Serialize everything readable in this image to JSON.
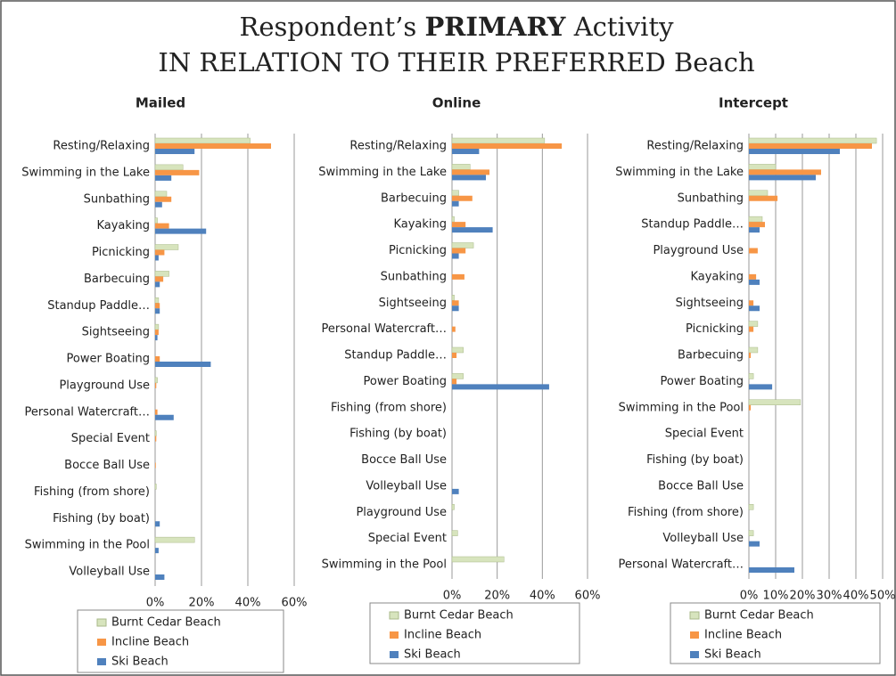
{
  "title": {
    "lines": [
      [
        "Respondent’s",
        "PRIMARY",
        "Activity"
      ],
      [
        "IN RELATION TO THEIR PREFERRED Beach"
      ]
    ]
  },
  "chart_data": [
    {
      "type": "hbar",
      "title": "Mailed",
      "categories": [
        "Resting/Relaxing",
        "Swimming in the Lake",
        "Sunbathing",
        "Kayaking",
        "Picnicking",
        "Barbecuing",
        "Standup Paddle…",
        "Sightseeing",
        "Power Boating",
        "Playground Use",
        "Personal Watercraft…",
        "Special Event",
        "Bocce Ball Use",
        "Fishing (from shore)",
        "Fishing (by boat)",
        "Swimming in the Pool",
        "Volleyball Use"
      ],
      "series": [
        {
          "name": "Burnt Cedar Beach",
          "color": "#d7e4bd",
          "values": [
            41,
            12,
            5,
            1,
            10,
            6,
            1.5,
            1.5,
            0,
            1,
            0,
            0.5,
            0,
            0.5,
            0,
            17,
            0
          ]
        },
        {
          "name": "Incline Beach",
          "color": "#f79646",
          "values": [
            50,
            19,
            7,
            6,
            4,
            3.5,
            2,
            1.5,
            2,
            0.5,
            1,
            0.5,
            0.3,
            0,
            0,
            0,
            0
          ]
        },
        {
          "name": "Ski Beach",
          "color": "#4f81bd",
          "values": [
            17,
            7,
            3,
            22,
            1.5,
            2,
            2,
            1,
            24,
            0,
            8,
            0,
            0,
            0,
            2,
            1.5,
            4
          ]
        }
      ],
      "xlim": [
        0,
        60
      ],
      "xticks": [
        {
          "value": 0,
          "label": "0%"
        },
        {
          "value": 20,
          "label": "20%"
        },
        {
          "value": 40,
          "label": "40%"
        },
        {
          "value": 60,
          "label": "60%"
        }
      ],
      "grid": true
    },
    {
      "type": "hbar",
      "title": "Online",
      "categories": [
        "Resting/Relaxing",
        "Swimming in the Lake",
        "Barbecuing",
        "Kayaking",
        "Picnicking",
        "Sunbathing",
        "Sightseeing",
        "Personal Watercraft…",
        "Standup Paddle…",
        "Power Boating",
        "Fishing (from shore)",
        "Fishing (by boat)",
        "Bocce Ball Use",
        "Volleyball Use",
        "Playground Use",
        "Special Event",
        "Swimming in the Pool"
      ],
      "series": [
        {
          "name": "Burnt Cedar Beach",
          "color": "#d7e4bd",
          "values": [
            41,
            8,
            3,
            1,
            9.5,
            0,
            1,
            0,
            5,
            5,
            0,
            0,
            0,
            0,
            1,
            2.5,
            23
          ]
        },
        {
          "name": "Incline Beach",
          "color": "#f79646",
          "values": [
            48.6,
            16.6,
            9,
            6,
            6,
            5.5,
            3,
            1.5,
            2,
            2,
            0,
            0,
            0,
            0,
            0,
            0,
            0
          ]
        },
        {
          "name": "Ski Beach",
          "color": "#4f81bd",
          "values": [
            12,
            15,
            3,
            18,
            3,
            0,
            3,
            0,
            0,
            43,
            0,
            0,
            0,
            3,
            0,
            0,
            0
          ]
        }
      ],
      "xlim": [
        0,
        60
      ],
      "xticks": [
        {
          "value": 0,
          "label": "0%"
        },
        {
          "value": 20,
          "label": "20%"
        },
        {
          "value": 40,
          "label": "40%"
        },
        {
          "value": 60,
          "label": "60%"
        }
      ],
      "grid": true
    },
    {
      "type": "hbar",
      "title": "Intercept",
      "categories": [
        "Resting/Relaxing",
        "Swimming in the Lake",
        "Sunbathing",
        "Standup Paddle…",
        "Playground Use",
        "Kayaking",
        "Sightseeing",
        "Picnicking",
        "Barbecuing",
        "Power Boating",
        "Swimming in the Pool",
        "Special Event",
        "Fishing (by boat)",
        "Bocce Ball Use",
        "Fishing (from shore)",
        "Volleyball Use",
        "Personal Watercraft…"
      ],
      "series": [
        {
          "name": "Burnt Cedar Beach",
          "color": "#d7e4bd",
          "values": [
            47.7,
            10,
            7,
            5,
            0,
            0,
            0,
            3.3,
            3.3,
            1.7,
            19.3,
            0,
            0,
            0,
            1.7,
            1.7,
            0
          ]
        },
        {
          "name": "Incline Beach",
          "color": "#f79646",
          "values": [
            46,
            27,
            10.7,
            6,
            3.3,
            2.7,
            1.7,
            1.7,
            0.7,
            0,
            0.7,
            0,
            0,
            0,
            0,
            0,
            0
          ]
        },
        {
          "name": "Ski Beach",
          "color": "#4f81bd",
          "values": [
            34,
            25,
            0,
            4,
            0,
            4,
            4,
            0,
            0,
            8.7,
            0,
            0,
            0,
            0,
            0,
            4,
            17
          ]
        }
      ],
      "xlim": [
        0,
        50
      ],
      "xticks": [
        {
          "value": 0,
          "label": "0%"
        },
        {
          "value": 10,
          "label": "10%"
        },
        {
          "value": 20,
          "label": "20%"
        },
        {
          "value": 30,
          "label": "30%"
        },
        {
          "value": 40,
          "label": "40%"
        },
        {
          "value": 50,
          "label": "50%"
        }
      ],
      "grid": true
    }
  ]
}
